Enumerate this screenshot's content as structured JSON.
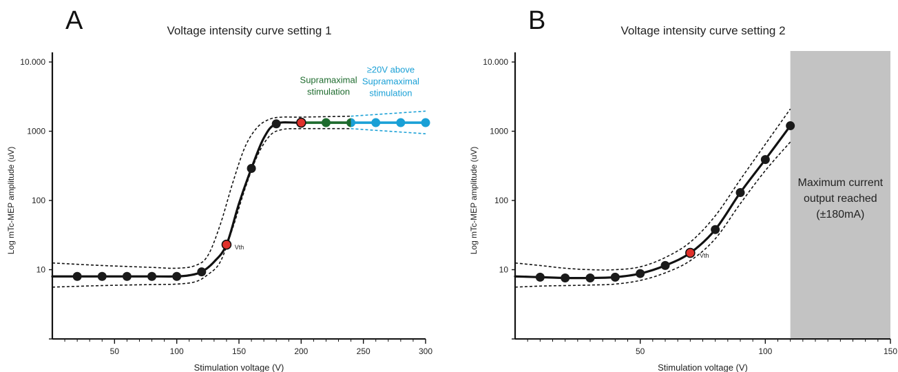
{
  "colors": {
    "curve": "#111111",
    "point": "#1a1a1a",
    "vth_point": "#e0312b",
    "supramaximal": "#1e6b2e",
    "above_supramaximal": "#1aa0d6",
    "shaded_region": "#c3c3c3"
  },
  "chart_data": [
    {
      "type": "line",
      "panel_letter": "A",
      "title": "Voltage intensity curve setting 1",
      "xlabel": "Stimulation voltage (V)",
      "ylabel": "Log mTc-MEP amplitude (uV)",
      "y_scale": "log",
      "xlim": [
        0,
        300
      ],
      "ylim": [
        1,
        10000
      ],
      "x_ticks": [
        50,
        100,
        150,
        200,
        250,
        300
      ],
      "x_tick_labels": [
        "50",
        "100",
        "150",
        "200",
        "250",
        "300"
      ],
      "x_minor_step": 10,
      "y_ticks": [
        10,
        100,
        1000,
        10000
      ],
      "y_tick_labels": [
        "10",
        "100",
        "1000",
        "10.000"
      ],
      "grid": false,
      "curve": {
        "x": [
          0,
          20,
          40,
          60,
          80,
          100,
          110,
          120,
          130,
          140,
          150,
          160,
          170,
          180,
          200,
          240
        ],
        "y": [
          8,
          8,
          8,
          8,
          8,
          8,
          8.3,
          9.3,
          13,
          23,
          90,
          290,
          800,
          1280,
          1330,
          1330
        ]
      },
      "upper_band": {
        "x": [
          0,
          40,
          80,
          100,
          115,
          125,
          135,
          145,
          155,
          165,
          175,
          185,
          200,
          240,
          300
        ],
        "y": [
          12.5,
          11.5,
          10.8,
          10.5,
          11.5,
          16,
          45,
          180,
          600,
          1150,
          1500,
          1600,
          1600,
          1650,
          1950
        ]
      },
      "lower_band": {
        "x": [
          0,
          40,
          80,
          100,
          115,
          125,
          135,
          145,
          155,
          165,
          175,
          185,
          200,
          240,
          300
        ],
        "y": [
          5.6,
          5.9,
          6.1,
          6.2,
          6.7,
          8.5,
          13,
          40,
          150,
          450,
          870,
          1060,
          1090,
          1090,
          920
        ]
      },
      "points": {
        "x": [
          20,
          40,
          60,
          80,
          100,
          120,
          140,
          160,
          180,
          200,
          220,
          240,
          260,
          280,
          300
        ],
        "y": [
          8,
          8,
          8,
          8,
          8,
          9.3,
          23,
          290,
          1280,
          1330,
          1330,
          1330,
          1330,
          1330,
          1330
        ],
        "kind": [
          "normal",
          "normal",
          "normal",
          "normal",
          "normal",
          "normal",
          "vth",
          "normal",
          "normal",
          "vth",
          "supramaximal",
          "split",
          "above",
          "above",
          "above"
        ]
      },
      "supramaximal_segment": {
        "x": [
          200,
          240
        ],
        "y": 1330
      },
      "above_segment": {
        "x": [
          240,
          300
        ],
        "y": 1330
      },
      "annotations": [
        {
          "id": "vth",
          "text": [
            "Vth"
          ],
          "x": 141,
          "y": 23,
          "color": "curve"
        },
        {
          "id": "supramaximal",
          "text": [
            "Supramaximal",
            "stimulation"
          ],
          "x": 222,
          "y": 5000,
          "color": "supramaximal"
        },
        {
          "id": "above",
          "text": [
            "≥20V above",
            "Supramaximal",
            "stimulation"
          ],
          "x": 272,
          "y": 7000,
          "color": "above_supramaximal"
        }
      ]
    },
    {
      "type": "line",
      "panel_letter": "B",
      "title": "Voltage intensity curve setting 2",
      "xlabel": "Stimulation voltage (V)",
      "ylabel": "Log mTc-MEP amplitude (uV)",
      "y_scale": "log",
      "xlim": [
        0,
        150
      ],
      "ylim": [
        1,
        10000
      ],
      "x_ticks": [
        50,
        100,
        150
      ],
      "x_tick_labels": [
        "50",
        "100",
        "150"
      ],
      "x_minor_step": 5,
      "y_ticks": [
        10,
        100,
        1000,
        10000
      ],
      "y_tick_labels": [
        "10",
        "100",
        "1000",
        "10.000"
      ],
      "grid": false,
      "shaded_region": {
        "x": [
          110,
          150
        ],
        "text": [
          "Maximum current",
          "output reached",
          "(±180mA)"
        ]
      },
      "curve": {
        "x": [
          0,
          10,
          20,
          30,
          40,
          50,
          60,
          70,
          80,
          90,
          100,
          110
        ],
        "y": [
          8,
          7.8,
          7.6,
          7.6,
          7.8,
          8.8,
          11.5,
          17.5,
          38,
          130,
          390,
          1200
        ]
      },
      "upper_band": {
        "x": [
          0,
          10,
          20,
          30,
          40,
          50,
          60,
          70,
          80,
          90,
          100,
          110
        ],
        "y": [
          12.5,
          11.5,
          10.5,
          10,
          10,
          11,
          15,
          25,
          60,
          200,
          650,
          2100
        ]
      },
      "lower_band": {
        "x": [
          0,
          10,
          20,
          30,
          40,
          50,
          60,
          70,
          80,
          90,
          100,
          110
        ],
        "y": [
          5.6,
          5.8,
          5.9,
          6,
          6.2,
          7,
          9,
          13.5,
          28,
          90,
          270,
          700
        ]
      },
      "points": {
        "x": [
          10,
          20,
          30,
          40,
          50,
          60,
          70,
          80,
          90,
          100,
          110
        ],
        "y": [
          7.8,
          7.6,
          7.6,
          7.8,
          8.8,
          11.5,
          17.5,
          38,
          130,
          390,
          1200
        ],
        "kind": [
          "normal",
          "normal",
          "normal",
          "normal",
          "normal",
          "normal",
          "vth",
          "normal",
          "normal",
          "normal",
          "normal"
        ]
      },
      "annotations": [
        {
          "id": "vth",
          "text": [
            "Vth"
          ],
          "x": 71,
          "y": 17.5,
          "color": "curve"
        }
      ]
    }
  ]
}
